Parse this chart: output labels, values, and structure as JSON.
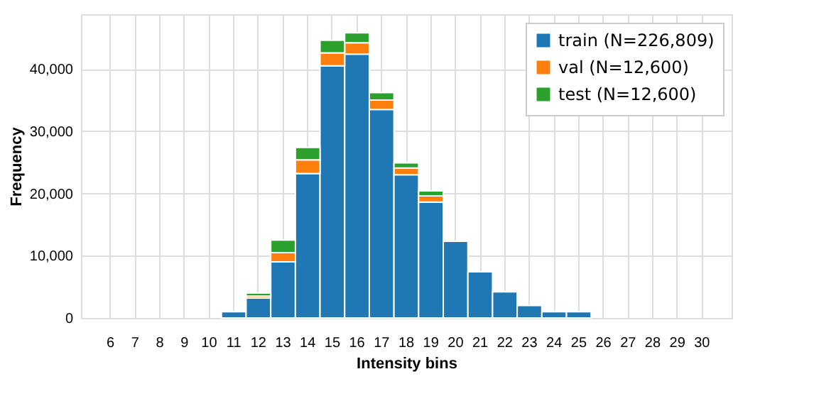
{
  "chart_data": {
    "type": "bar",
    "stacked": true,
    "xlabel": "Intensity bins",
    "ylabel": "Frequency",
    "categories": [
      "6",
      "7",
      "8",
      "9",
      "10",
      "11",
      "12",
      "13",
      "14",
      "15",
      "16",
      "17",
      "18",
      "19",
      "20",
      "21",
      "22",
      "23",
      "24",
      "25",
      "26",
      "27",
      "28",
      "29",
      "30"
    ],
    "series": [
      {
        "name": "train (N=226,809)",
        "color": "#1f77b4",
        "values": [
          0,
          0,
          0,
          0,
          0,
          1000,
          3200,
          9000,
          23200,
          40500,
          42400,
          33500,
          23000,
          18600,
          12300,
          7400,
          4200,
          2000,
          1000,
          1000,
          0,
          0,
          0,
          0,
          0
        ]
      },
      {
        "name": "val   (N=12,600)",
        "color": "#ff7f0e",
        "values": [
          0,
          0,
          0,
          0,
          0,
          0,
          300,
          1500,
          2200,
          2100,
          1800,
          1500,
          1100,
          1000,
          0,
          0,
          0,
          0,
          0,
          0,
          0,
          0,
          0,
          0,
          0
        ]
      },
      {
        "name": "test  (N=12,600)",
        "color": "#2ca02c",
        "values": [
          0,
          0,
          0,
          0,
          0,
          0,
          500,
          2000,
          2000,
          2000,
          1600,
          1200,
          800,
          800,
          0,
          0,
          0,
          0,
          0,
          0,
          0,
          0,
          0,
          0,
          0
        ]
      }
    ],
    "ylim": [
      0,
      48800
    ],
    "yticks": [
      0,
      {
        "value": 10000,
        "label": "10,000"
      },
      {
        "value": 20000,
        "label": "20,000"
      },
      {
        "value": 30000,
        "label": "30,000"
      },
      {
        "value": 40000,
        "label": "40,000"
      }
    ],
    "grid": true,
    "legend": "top right"
  }
}
